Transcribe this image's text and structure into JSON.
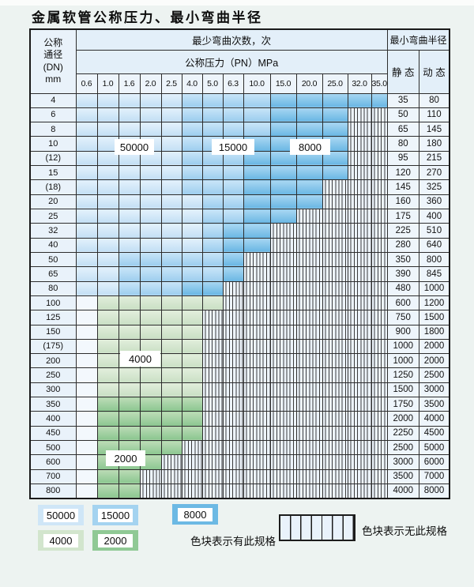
{
  "title": "金属软管公称压力、最小弯曲半径",
  "table": {
    "corner_header": {
      "line1": "公称",
      "line2": "通径",
      "line3": "(DN)",
      "line4": "mm"
    },
    "bend_cycles_header": "最少弯曲次数，次",
    "pressure_header": "公称压力（PN）MPa",
    "radius_header": "最小弯曲半径",
    "static_header": "静 态",
    "dynamic_header": "动 态",
    "pressure_columns": [
      "0.6",
      "1.0",
      "1.6",
      "2.0",
      "2.5",
      "4.0",
      "5.0",
      "6.3",
      "10.0",
      "15.0",
      "20.0",
      "25.0",
      "32.0",
      "35.0"
    ],
    "cell_states_legend": {
      "s5": "50000次区域",
      "s15": "15000次区域",
      "s8": "8000次区域",
      "g4": "4000次区域",
      "g2": "2000次区域",
      "h": "无此规格(竖线填充)",
      "w": "空白"
    },
    "rows": [
      {
        "dn": "4",
        "cells": [
          "s5",
          "s5",
          "s5",
          "s5",
          "s5",
          "s15",
          "s15",
          "s15",
          "s15",
          "s8",
          "s8",
          "s8",
          "s8",
          "s8"
        ],
        "static": "35",
        "dynamic": "80"
      },
      {
        "dn": "6",
        "cells": [
          "s5",
          "s5",
          "s5",
          "s5",
          "s5",
          "s15",
          "s15",
          "s15",
          "s15",
          "s8",
          "s8",
          "s8",
          "h",
          "h"
        ],
        "static": "50",
        "dynamic": "110"
      },
      {
        "dn": "8",
        "cells": [
          "s5",
          "s5",
          "s5",
          "s5",
          "s5",
          "s15",
          "s15",
          "s15",
          "s15",
          "s8",
          "s8",
          "s8",
          "h",
          "h"
        ],
        "static": "65",
        "dynamic": "145"
      },
      {
        "dn": "10",
        "cells": [
          "s5",
          "s5",
          "s5",
          "s5",
          "s5",
          "s15",
          "s15",
          "s15",
          "s8",
          "s8",
          "s8",
          "s8",
          "h",
          "h"
        ],
        "static": "80",
        "dynamic": "180"
      },
      {
        "dn": "(12)",
        "cells": [
          "s5",
          "s5",
          "s5",
          "s5",
          "s5",
          "s15",
          "s15",
          "s15",
          "s8",
          "s8",
          "s8",
          "s8",
          "h",
          "h"
        ],
        "static": "95",
        "dynamic": "215"
      },
      {
        "dn": "15",
        "cells": [
          "s5",
          "s5",
          "s5",
          "s5",
          "s5",
          "s15",
          "s15",
          "s15",
          "s8",
          "s8",
          "s8",
          "s8",
          "h",
          "h"
        ],
        "static": "120",
        "dynamic": "270"
      },
      {
        "dn": "(18)",
        "cells": [
          "s5",
          "s5",
          "s5",
          "s5",
          "s5",
          "s15",
          "s15",
          "s15",
          "s8",
          "s8",
          "s8",
          "h",
          "h",
          "h"
        ],
        "static": "145",
        "dynamic": "325"
      },
      {
        "dn": "20",
        "cells": [
          "s5",
          "s5",
          "s5",
          "s5",
          "s5",
          "s5",
          "s15",
          "s15",
          "s8",
          "s8",
          "s8",
          "h",
          "h",
          "h"
        ],
        "static": "160",
        "dynamic": "360"
      },
      {
        "dn": "25",
        "cells": [
          "s5",
          "s5",
          "s5",
          "s5",
          "s5",
          "s5",
          "s15",
          "s15",
          "s8",
          "s8",
          "h",
          "h",
          "h",
          "h"
        ],
        "static": "175",
        "dynamic": "400"
      },
      {
        "dn": "32",
        "cells": [
          "s5",
          "s5",
          "s5",
          "s5",
          "s5",
          "s5",
          "s15",
          "s8",
          "s8",
          "h",
          "h",
          "h",
          "h",
          "h"
        ],
        "static": "225",
        "dynamic": "510"
      },
      {
        "dn": "40",
        "cells": [
          "s5",
          "s5",
          "s5",
          "s5",
          "s5",
          "s5",
          "s15",
          "s8",
          "s8",
          "h",
          "h",
          "h",
          "h",
          "h"
        ],
        "static": "280",
        "dynamic": "640"
      },
      {
        "dn": "50",
        "cells": [
          "s5",
          "s5",
          "s15",
          "s15",
          "s15",
          "s15",
          "s15",
          "s8",
          "h",
          "h",
          "h",
          "h",
          "h",
          "h"
        ],
        "static": "350",
        "dynamic": "800"
      },
      {
        "dn": "65",
        "cells": [
          "s5",
          "s5",
          "s15",
          "s15",
          "s15",
          "s15",
          "s15",
          "s8",
          "h",
          "h",
          "h",
          "h",
          "h",
          "h"
        ],
        "static": "390",
        "dynamic": "845"
      },
      {
        "dn": "80",
        "cells": [
          "s5",
          "s5",
          "s15",
          "s15",
          "s15",
          "s8",
          "s8",
          "h",
          "h",
          "h",
          "h",
          "h",
          "h",
          "h"
        ],
        "static": "480",
        "dynamic": "1000"
      },
      {
        "dn": "100",
        "cells": [
          "w",
          "g4",
          "g4",
          "g4",
          "g4",
          "g4",
          "g4",
          "h",
          "h",
          "h",
          "h",
          "h",
          "h",
          "h"
        ],
        "static": "600",
        "dynamic": "1200"
      },
      {
        "dn": "125",
        "cells": [
          "w",
          "g4",
          "g4",
          "g4",
          "g4",
          "g4",
          "h",
          "h",
          "h",
          "h",
          "h",
          "h",
          "h",
          "h"
        ],
        "static": "750",
        "dynamic": "1500"
      },
      {
        "dn": "150",
        "cells": [
          "w",
          "g4",
          "g4",
          "g4",
          "g4",
          "g4",
          "h",
          "h",
          "h",
          "h",
          "h",
          "h",
          "h",
          "h"
        ],
        "static": "900",
        "dynamic": "1800"
      },
      {
        "dn": "(175)",
        "cells": [
          "w",
          "g4",
          "g4",
          "g4",
          "g4",
          "g4",
          "h",
          "h",
          "h",
          "h",
          "h",
          "h",
          "h",
          "h"
        ],
        "static": "1000",
        "dynamic": "2000"
      },
      {
        "dn": "200",
        "cells": [
          "w",
          "g4",
          "g4",
          "g4",
          "g4",
          "g4",
          "h",
          "h",
          "h",
          "h",
          "h",
          "h",
          "h",
          "h"
        ],
        "static": "1000",
        "dynamic": "2000"
      },
      {
        "dn": "250",
        "cells": [
          "w",
          "g4",
          "g4",
          "g4",
          "g4",
          "g4",
          "h",
          "h",
          "h",
          "h",
          "h",
          "h",
          "h",
          "h"
        ],
        "static": "1250",
        "dynamic": "2500"
      },
      {
        "dn": "300",
        "cells": [
          "w",
          "g4",
          "g4",
          "g4",
          "g4",
          "g4",
          "h",
          "h",
          "h",
          "h",
          "h",
          "h",
          "h",
          "h"
        ],
        "static": "1500",
        "dynamic": "3000"
      },
      {
        "dn": "350",
        "cells": [
          "w",
          "g2",
          "g2",
          "g2",
          "g2",
          "g2",
          "h",
          "h",
          "h",
          "h",
          "h",
          "h",
          "h",
          "h"
        ],
        "static": "1750",
        "dynamic": "3500"
      },
      {
        "dn": "400",
        "cells": [
          "w",
          "g2",
          "g2",
          "g2",
          "g2",
          "g2",
          "h",
          "h",
          "h",
          "h",
          "h",
          "h",
          "h",
          "h"
        ],
        "static": "2000",
        "dynamic": "4000"
      },
      {
        "dn": "450",
        "cells": [
          "w",
          "g2",
          "g2",
          "g2",
          "g2",
          "g2",
          "h",
          "h",
          "h",
          "h",
          "h",
          "h",
          "h",
          "h"
        ],
        "static": "2250",
        "dynamic": "4500"
      },
      {
        "dn": "500",
        "cells": [
          "w",
          "g2",
          "g2",
          "g2",
          "g2",
          "h",
          "h",
          "h",
          "h",
          "h",
          "h",
          "h",
          "h",
          "h"
        ],
        "static": "2500",
        "dynamic": "5000"
      },
      {
        "dn": "600",
        "cells": [
          "w",
          "g2",
          "g2",
          "g2",
          "h",
          "h",
          "h",
          "h",
          "h",
          "h",
          "h",
          "h",
          "h",
          "h"
        ],
        "static": "3000",
        "dynamic": "6000"
      },
      {
        "dn": "700",
        "cells": [
          "w",
          "g2",
          "g2",
          "h",
          "h",
          "h",
          "h",
          "h",
          "h",
          "h",
          "h",
          "h",
          "h",
          "h"
        ],
        "static": "3500",
        "dynamic": "7000"
      },
      {
        "dn": "800",
        "cells": [
          "w",
          "g2",
          "g2",
          "h",
          "h",
          "h",
          "h",
          "h",
          "h",
          "h",
          "h",
          "h",
          "h",
          "h"
        ],
        "static": "4000",
        "dynamic": "8000"
      }
    ],
    "overlay_labels": [
      {
        "text": "50000"
      },
      {
        "text": "15000"
      },
      {
        "text": "8000"
      },
      {
        "text": "4000"
      },
      {
        "text": "2000"
      }
    ]
  },
  "legend": {
    "swatches": [
      {
        "value": "50000",
        "color": "#cfe6f7"
      },
      {
        "value": "15000",
        "color": "#a4d3f0"
      },
      {
        "value": "8000",
        "color": "#6cb9e4"
      },
      {
        "value": "4000",
        "color": "#d2e5cd"
      },
      {
        "value": "2000",
        "color": "#90c995"
      }
    ],
    "has_spec_text": "色块表示有此规格",
    "no_spec_text": "色块表示无此规格"
  },
  "colors": {
    "blue_50000": "#cfe6f7",
    "blue_15000": "#a4d3f0",
    "blue_8000": "#6cb9e4",
    "green_4000": "#d2e5cd",
    "green_2000": "#90c995",
    "grid_line": "#2d2d2d",
    "table_bg": "#f2f7fc",
    "page_bg": "#edf3f1"
  }
}
